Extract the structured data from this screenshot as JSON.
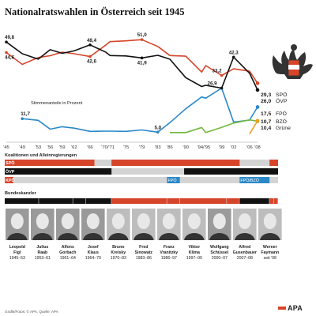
{
  "title": "Nationalratswahlen in Österreich seit 1945",
  "stimmen_label": "Stimmenanteile in Prozent",
  "koalitionen_label": "Koalitionen und Alleinregierungen",
  "bundeskanzler_label": "Bundeskanzler",
  "footer": "Grafik/Fotos: © APA, Quelle: APA",
  "logo": "APA",
  "colors": {
    "spo": "#d6452a",
    "ovp": "#111111",
    "fpo": "#2a88c8",
    "bzo": "#f0a020",
    "gruene": "#74b83e",
    "coalition_off": "#d4d4d4"
  },
  "chart_data": {
    "type": "line",
    "x_ticks": [
      "'45",
      "'49",
      "'53",
      "'56",
      "'59",
      "'62",
      "'66",
      "'70/'71",
      "'75",
      "'79",
      "'83",
      "'86",
      "'90",
      "'94/'95",
      "'99",
      "'02",
      "'06",
      "'08"
    ],
    "series": [
      {
        "name": "SPÖ",
        "x": [
          1945,
          1949,
          1953,
          1956,
          1959,
          1962,
          1966,
          1970,
          1971,
          1975,
          1979,
          1983,
          1986,
          1990,
          1994,
          1995,
          1999,
          2002,
          2006,
          2008
        ],
        "values": [
          44.6,
          38.7,
          42.1,
          43.0,
          44.8,
          44.0,
          42.6,
          48.4,
          50.0,
          50.4,
          51.0,
          47.6,
          43.1,
          42.8,
          34.9,
          38.1,
          33.2,
          36.5,
          35.3,
          29.3
        ]
      },
      {
        "name": "ÖVP",
        "x": [
          1945,
          1949,
          1953,
          1956,
          1959,
          1962,
          1966,
          1970,
          1971,
          1975,
          1979,
          1983,
          1986,
          1990,
          1994,
          1995,
          1999,
          2002,
          2006,
          2008
        ],
        "values": [
          49.8,
          44.0,
          41.3,
          46.0,
          44.2,
          45.4,
          48.4,
          44.7,
          43.1,
          42.9,
          41.9,
          43.2,
          41.3,
          32.1,
          27.7,
          28.3,
          26.9,
          42.3,
          34.3,
          26.0
        ]
      },
      {
        "name": "FPÖ",
        "x": [
          1949,
          1953,
          1956,
          1959,
          1962,
          1966,
          1970,
          1971,
          1975,
          1979,
          1983,
          1986,
          1990,
          1994,
          1995,
          1999,
          2002,
          2006,
          2008
        ],
        "values": [
          11.7,
          10.9,
          6.5,
          7.7,
          7.0,
          5.4,
          5.5,
          5.5,
          5.4,
          6.1,
          5.0,
          9.7,
          16.6,
          22.5,
          21.9,
          26.9,
          10.0,
          11.0,
          17.5
        ]
      },
      {
        "name": "Grüne",
        "x": [
          1986,
          1990,
          1994,
          1995,
          1999,
          2002,
          2006,
          2008
        ],
        "values": [
          4.8,
          4.8,
          7.3,
          4.8,
          7.4,
          9.5,
          11.1,
          10.4
        ]
      },
      {
        "name": "BZÖ",
        "x": [
          2006,
          2008
        ],
        "values": [
          4.1,
          10.7
        ]
      }
    ],
    "data_labels": [
      "49,8",
      "44,6",
      "42,6",
      "48,4",
      "51,0",
      "41,9",
      "11,7",
      "5,0",
      "26,9",
      "33,2",
      "42,3"
    ],
    "end_labels": [
      {
        "value": "29,3",
        "party": "SPÖ"
      },
      {
        "value": "26,0",
        "party": "ÖVP"
      },
      {
        "value": "17,5",
        "party": "FPÖ"
      },
      {
        "value": "10,7",
        "party": "BZÖ"
      },
      {
        "value": "10,4",
        "party": "Grüne"
      }
    ],
    "x_range": [
      1945,
      2008
    ],
    "y_range": [
      0,
      55
    ],
    "grid": false
  },
  "coalitions": {
    "rows": [
      {
        "label": "SPÖ",
        "color": "spo",
        "periods": [
          [
            1945,
            1966
          ],
          [
            1970,
            2000
          ],
          [
            2007,
            2009
          ]
        ]
      },
      {
        "label": "ÖVP",
        "color": "ovp",
        "periods": [
          [
            1945,
            1970
          ],
          [
            1987,
            2009
          ]
        ]
      },
      {
        "label": "KPÖ",
        "color": "spo",
        "periods": [
          [
            1945,
            1947
          ]
        ]
      }
    ],
    "fpo_row": [
      {
        "label": "FPÖ",
        "color": "fpo",
        "period": [
          1983,
          1986
        ]
      },
      {
        "label": "FPÖ/BZÖ",
        "color": "fpo",
        "period": [
          2000,
          2007
        ]
      }
    ]
  },
  "chancellors": [
    {
      "first": "Leopold",
      "last": "Figl",
      "years": "1945–53",
      "party": "ovp"
    },
    {
      "first": "Julius",
      "last": "Raab",
      "years": "1953–61",
      "party": "ovp"
    },
    {
      "first": "Alfons",
      "last": "Gorbach",
      "years": "1961–64",
      "party": "ovp"
    },
    {
      "first": "Josef",
      "last": "Klaus",
      "years": "1964–70",
      "party": "ovp"
    },
    {
      "first": "Bruno",
      "last": "Kreisky",
      "years": "1970–83",
      "party": "spo"
    },
    {
      "first": "Fred",
      "last": "Sinowatz",
      "years": "1983–86",
      "party": "spo"
    },
    {
      "first": "Franz",
      "last": "Vranitzky",
      "years": "1986–97",
      "party": "spo"
    },
    {
      "first": "Viktor",
      "last": "Klima",
      "years": "1997–00",
      "party": "spo"
    },
    {
      "first": "Wolfgang",
      "last": "Schüssel",
      "years": "2000–07",
      "party": "ovp"
    },
    {
      "first": "Alfred",
      "last": "Gusenbauer",
      "years": "2007–08",
      "party": "spo"
    },
    {
      "first": "Werner",
      "last": "Faymann",
      "years": "seit '08",
      "party": "spo"
    }
  ]
}
